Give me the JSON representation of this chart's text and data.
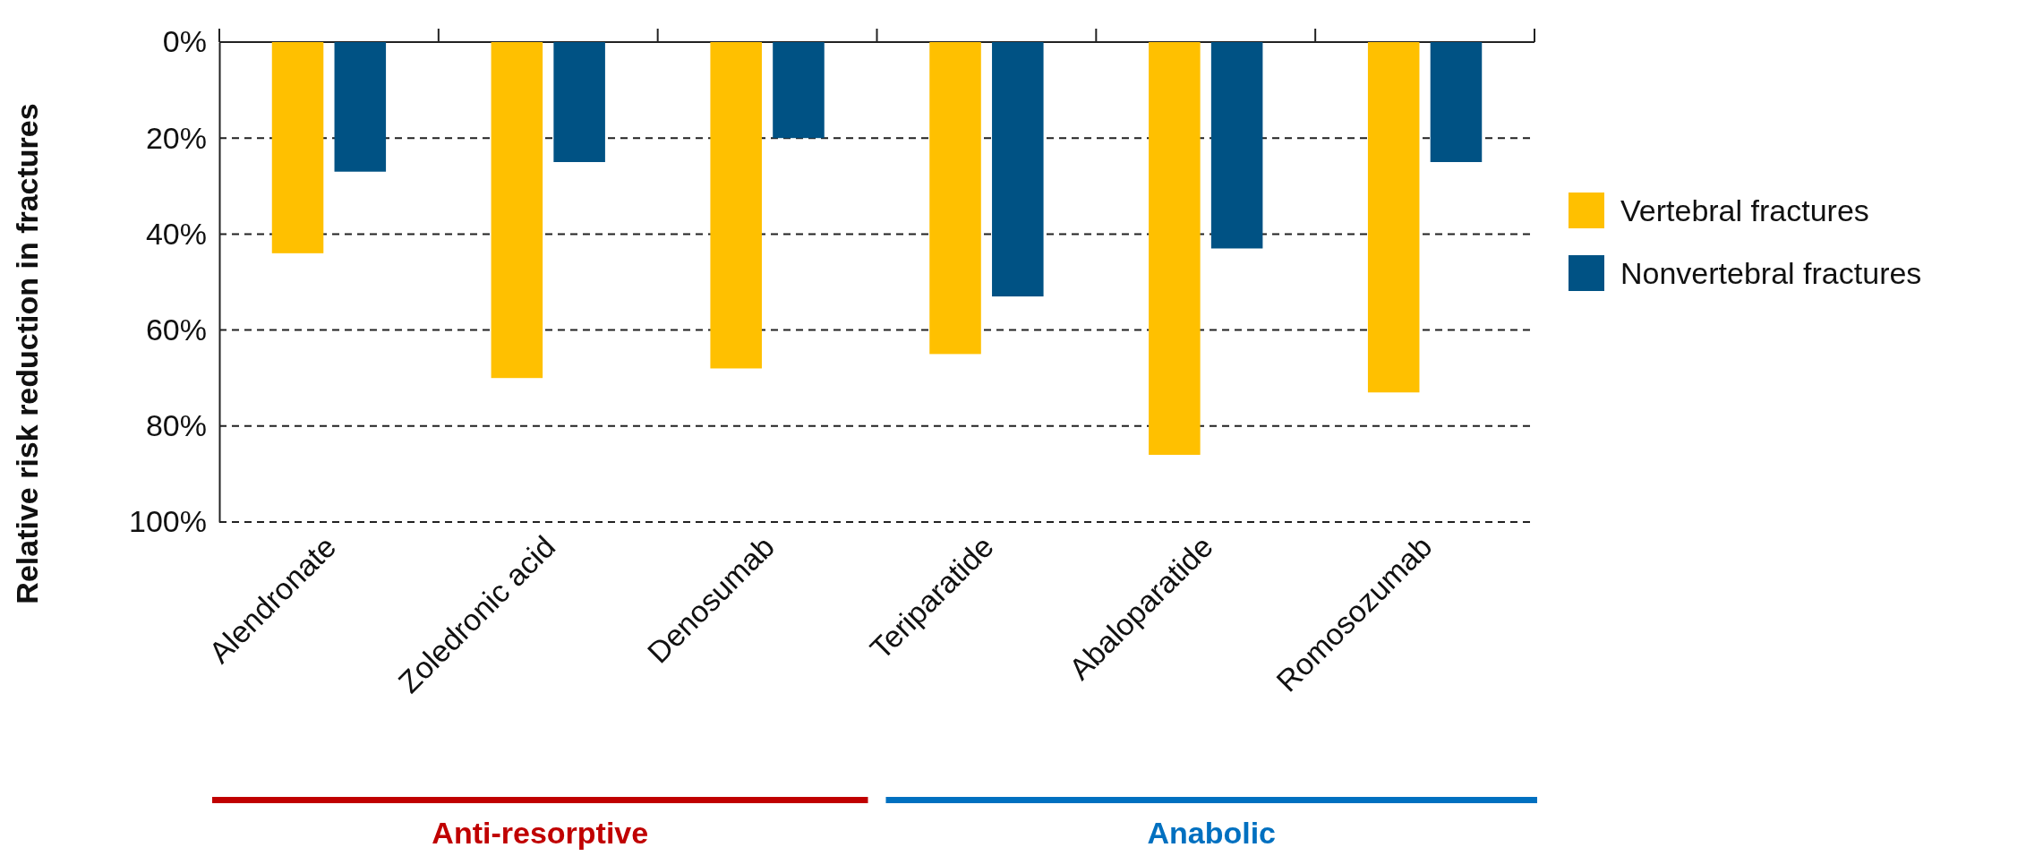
{
  "chart_data": {
    "type": "bar",
    "ylabel": "Relative risk reduction in fractures",
    "categories": [
      "Alendronate",
      "Zoledronic acid",
      "Denosumab",
      "Teriparatide",
      "Abaloparatide",
      "Romosozumab"
    ],
    "series": [
      {
        "name": "Vertebral fractures",
        "color": "#ffc000",
        "values": [
          44,
          70,
          68,
          65,
          86,
          73
        ]
      },
      {
        "name": "Nonvertebral fractures",
        "color": "#005284",
        "values": [
          27,
          25,
          20,
          53,
          43,
          25
        ]
      }
    ],
    "ylim": [
      100,
      0
    ],
    "yticks": [
      {
        "value": 0,
        "label": "0%"
      },
      {
        "value": 20,
        "label": "20%"
      },
      {
        "value": 40,
        "label": "40%"
      },
      {
        "value": 60,
        "label": "60%"
      },
      {
        "value": 80,
        "label": "80%"
      },
      {
        "value": 100,
        "label": "100%"
      }
    ],
    "grid": "y",
    "legend": "right",
    "annotations": [
      "Anti-resorptive",
      "Anabolic"
    ]
  }
}
